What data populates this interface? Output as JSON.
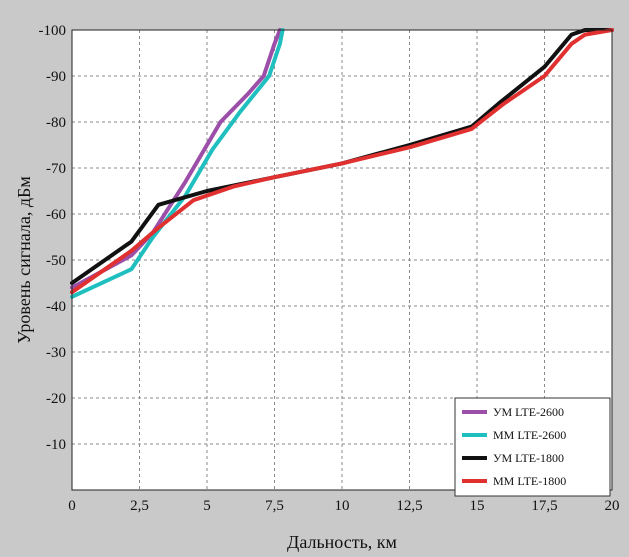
{
  "chart_data": {
    "type": "line",
    "title": "",
    "xlabel": "Дальность, км",
    "ylabel": "Уровень сигнала, дБм",
    "xlim": [
      0,
      20
    ],
    "ylim": [
      0,
      -100
    ],
    "x_ticks": [
      "0",
      "2,5",
      "5",
      "7,5",
      "10",
      "12,5",
      "15",
      "17,5",
      "20"
    ],
    "y_ticks": [
      "-100",
      "-90",
      "-80",
      "-70",
      "-60",
      "-50",
      "-40",
      "-30",
      "-20",
      "-10"
    ],
    "grid": true,
    "grid_style": "dashed",
    "legend_position": "bottom-right",
    "series": [
      {
        "name": "УМ LTE-2600",
        "color": "#9b4fa8",
        "points": [
          [
            0,
            -44
          ],
          [
            2.2,
            -51
          ],
          [
            3.0,
            -56
          ],
          [
            4.2,
            -67
          ],
          [
            5.5,
            -80
          ],
          [
            6.5,
            -86
          ],
          [
            7.1,
            -90
          ],
          [
            7.5,
            -97
          ],
          [
            7.7,
            -100
          ]
        ]
      },
      {
        "name": "ММ LTE-2600",
        "color": "#1fbfbf",
        "points": [
          [
            0,
            -42
          ],
          [
            2.2,
            -48
          ],
          [
            3.0,
            -55
          ],
          [
            4.2,
            -64
          ],
          [
            5.2,
            -74
          ],
          [
            6.2,
            -82
          ],
          [
            7.3,
            -90
          ],
          [
            7.7,
            -97
          ],
          [
            7.8,
            -100
          ]
        ]
      },
      {
        "name": "УМ LTE-1800",
        "color": "#111111",
        "points": [
          [
            0,
            -45
          ],
          [
            2.2,
            -54
          ],
          [
            3.2,
            -62
          ],
          [
            5.0,
            -65
          ],
          [
            7.5,
            -68
          ],
          [
            10,
            -71
          ],
          [
            12.5,
            -75
          ],
          [
            14.8,
            -79
          ],
          [
            15.8,
            -84
          ],
          [
            17.5,
            -92
          ],
          [
            18.5,
            -99
          ],
          [
            19.0,
            -100
          ],
          [
            20.0,
            -100
          ]
        ]
      },
      {
        "name": "ММ LTE-1800",
        "color": "#e03030",
        "points": [
          [
            0,
            -43
          ],
          [
            2.2,
            -52
          ],
          [
            3.2,
            -57
          ],
          [
            4.5,
            -63
          ],
          [
            6.0,
            -66
          ],
          [
            7.5,
            -68
          ],
          [
            10,
            -71
          ],
          [
            12.5,
            -74.5
          ],
          [
            14.8,
            -78.5
          ],
          [
            16.0,
            -84
          ],
          [
            17.5,
            -90
          ],
          [
            18.5,
            -97
          ],
          [
            19.0,
            -99
          ],
          [
            20.0,
            -100
          ]
        ]
      }
    ]
  }
}
